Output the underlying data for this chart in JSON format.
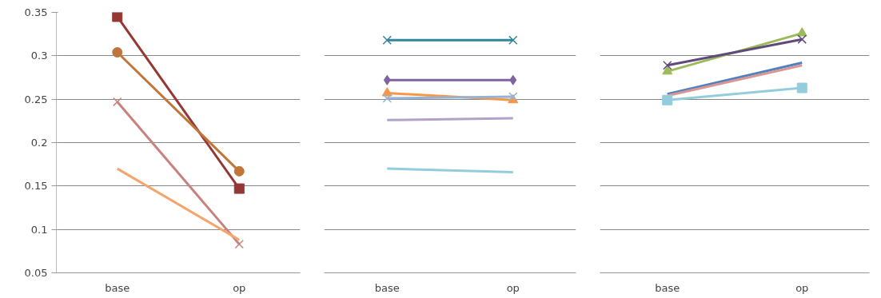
{
  "chart_data": [
    {
      "type": "line",
      "categories": [
        "base",
        "op"
      ],
      "ylim": [
        0.05,
        0.35
      ],
      "yticks": [
        0.05,
        0.1,
        0.15,
        0.2,
        0.25,
        0.3,
        0.35
      ],
      "grid": "y",
      "series": [
        {
          "color": "#953735",
          "marker": "square",
          "values": [
            0.345,
            0.147
          ]
        },
        {
          "color": "#c0763a",
          "marker": "circle",
          "values": [
            0.304,
            0.167
          ]
        },
        {
          "color": "#c7817f",
          "marker": "cross",
          "values": [
            0.247,
            0.083
          ]
        },
        {
          "color": "#f4a46c",
          "marker": "none",
          "values": [
            0.17,
            0.088
          ]
        }
      ]
    },
    {
      "type": "line",
      "categories": [
        "base",
        "op"
      ],
      "ylim": [
        0.05,
        0.35
      ],
      "yticks": [
        0.05,
        0.1,
        0.15,
        0.2,
        0.25,
        0.3,
        0.35
      ],
      "grid": "y",
      "tick_labels": "x",
      "series": [
        {
          "color": "#31859c",
          "marker": "cross",
          "values": [
            0.318,
            0.318
          ]
        },
        {
          "color": "#8064a2",
          "marker": "diamond",
          "values": [
            0.272,
            0.272
          ]
        },
        {
          "color": "#f79646",
          "marker": "triangle",
          "values": [
            0.257,
            0.249
          ]
        },
        {
          "color": "#95b3d7",
          "marker": "cross",
          "values": [
            0.251,
            0.253
          ]
        },
        {
          "color": "#b3a2c7",
          "marker": "none",
          "values": [
            0.226,
            0.228
          ]
        },
        {
          "color": "#93cddd",
          "marker": "none",
          "values": [
            0.17,
            0.166
          ]
        }
      ]
    },
    {
      "type": "line",
      "categories": [
        "base",
        "op"
      ],
      "ylim": [
        0.05,
        0.35
      ],
      "yticks": [
        0.05,
        0.1,
        0.15,
        0.2,
        0.25,
        0.3,
        0.35
      ],
      "grid": "y",
      "tick_labels": "x",
      "series": [
        {
          "color": "#9bbb59",
          "marker": "triangle",
          "values": [
            0.282,
            0.326
          ]
        },
        {
          "color": "#604a7b",
          "marker": "cross",
          "values": [
            0.289,
            0.319
          ]
        },
        {
          "color": "#4f81bd",
          "marker": "none",
          "values": [
            0.256,
            0.292
          ]
        },
        {
          "color": "#d99694",
          "marker": "none",
          "values": [
            0.254,
            0.289
          ]
        },
        {
          "color": "#93cddd",
          "marker": "square",
          "values": [
            0.249,
            0.263
          ]
        }
      ]
    }
  ]
}
